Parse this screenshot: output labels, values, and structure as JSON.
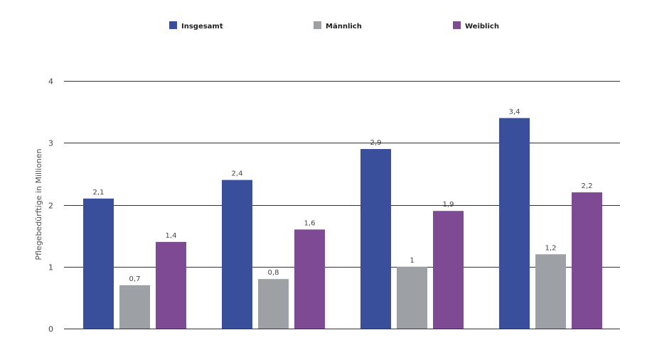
{
  "chart_data": {
    "type": "bar",
    "categories": [
      "",
      "",
      "",
      ""
    ],
    "series": [
      {
        "name": "Insgesamt",
        "color": "#3a4f9c",
        "values": [
          2.1,
          2.4,
          2.9,
          3.4
        ],
        "labels": [
          "2,1",
          "2,4",
          "2,9",
          "3,4"
        ]
      },
      {
        "name": "Männlich",
        "color": "#9da0a4",
        "values": [
          0.7,
          0.8,
          1.0,
          1.2
        ],
        "labels": [
          "0,7",
          "0,8",
          "1",
          "1,2"
        ]
      },
      {
        "name": "Weiblich",
        "color": "#7d4a93",
        "values": [
          1.4,
          1.6,
          1.9,
          2.2
        ],
        "labels": [
          "1,4",
          "1,6",
          "1,9",
          "2,2"
        ]
      }
    ],
    "title": "",
    "xlabel": "",
    "ylabel": "Pflegebedürftige in Millionen",
    "ylim": [
      0,
      4
    ],
    "yticks": [
      0,
      1,
      2,
      3,
      4
    ],
    "ytick_labels": [
      "0",
      "1",
      "2",
      "3",
      "4"
    ],
    "grid": true,
    "legend_position": "top"
  }
}
